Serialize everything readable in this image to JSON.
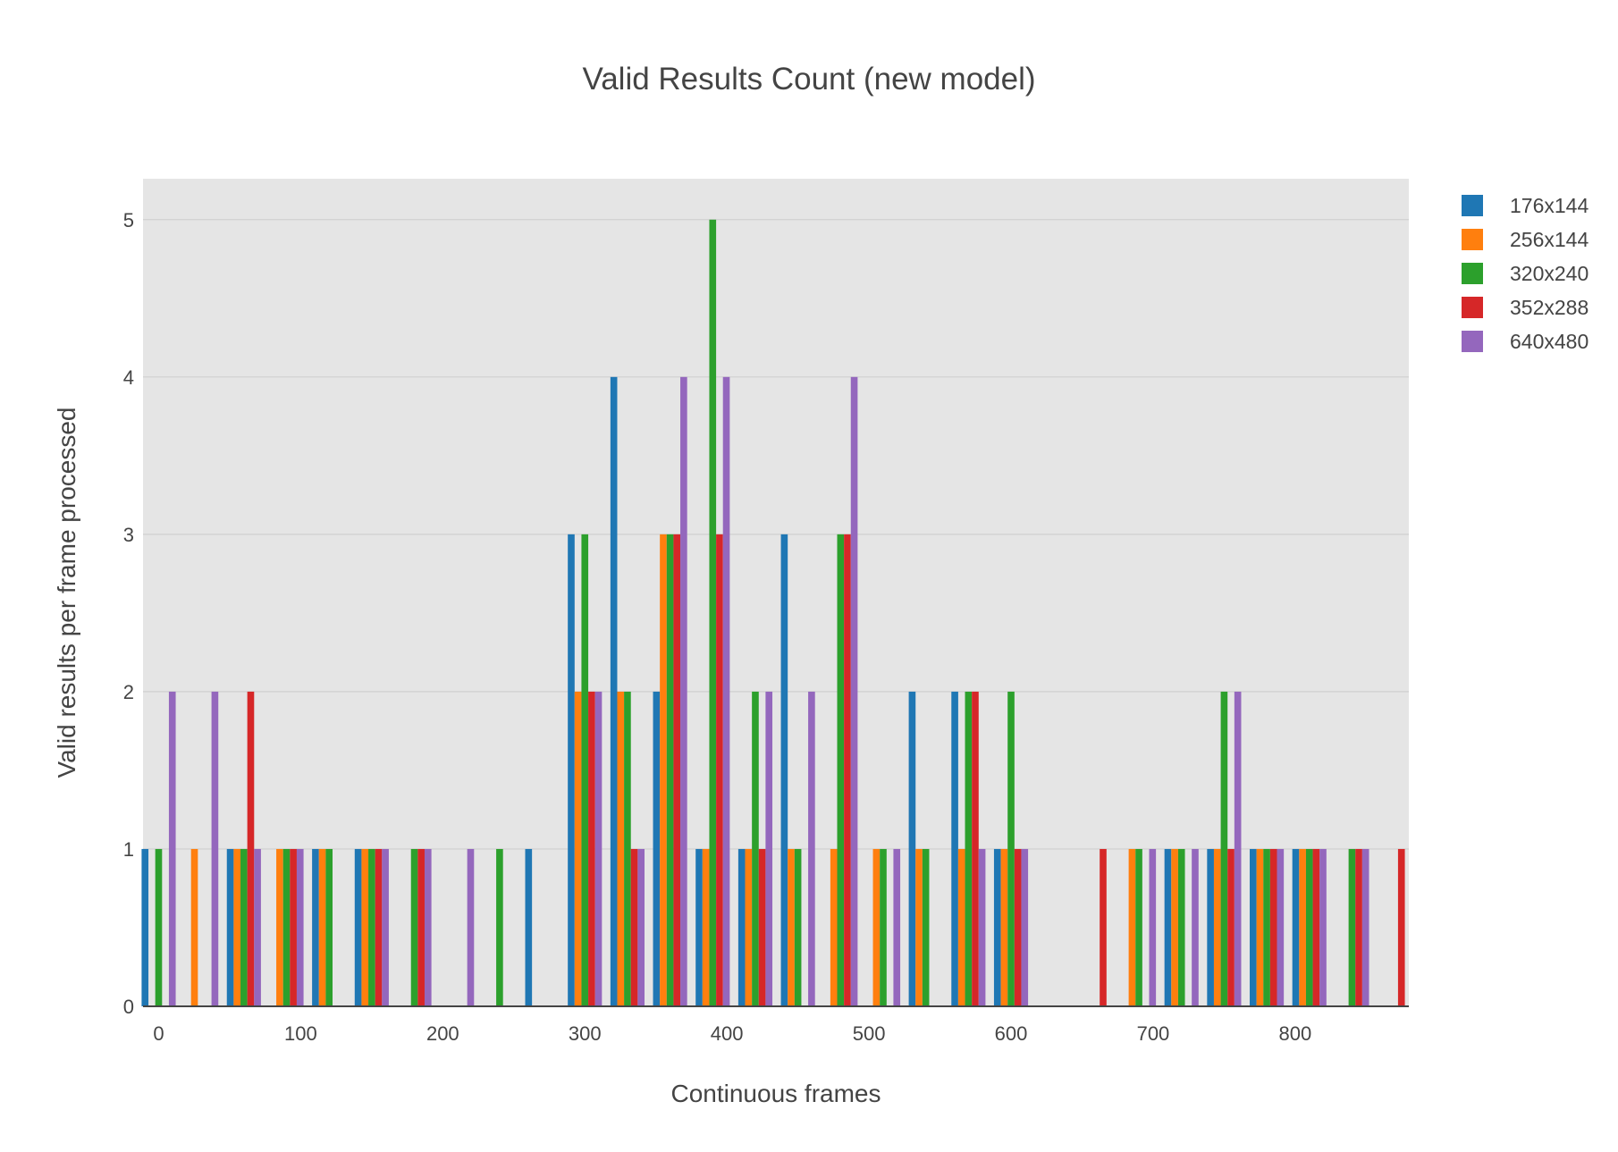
{
  "chart_data": {
    "type": "bar",
    "title": "Valid Results Count (new model)",
    "xlabel": "Continuous frames",
    "ylabel": "Valid results per frame processed",
    "xlim": [
      -11,
      880
    ],
    "ylim": [
      0,
      5.26
    ],
    "x_ticks": [
      0,
      100,
      200,
      300,
      400,
      500,
      600,
      700,
      800
    ],
    "y_ticks": [
      0,
      1,
      2,
      3,
      4,
      5
    ],
    "grid": true,
    "legend_position": "top-right",
    "plot_background": "#e5e5e5",
    "x": [
      0,
      30,
      60,
      90,
      120,
      150,
      180,
      210,
      240,
      270,
      300,
      330,
      360,
      390,
      420,
      450,
      480,
      510,
      540,
      570,
      600,
      630,
      660,
      690,
      720,
      750,
      780,
      810,
      840,
      870
    ],
    "series": [
      {
        "name": "176x144",
        "color": "#1f77b4",
        "values": [
          1,
          0,
          1,
          0,
          1,
          1,
          0,
          0,
          0,
          1,
          3,
          4,
          2,
          1,
          1,
          3,
          0,
          0,
          2,
          2,
          1,
          0,
          0,
          0,
          1,
          1,
          1,
          1,
          0,
          0
        ]
      },
      {
        "name": "256x144",
        "color": "#ff7f0e",
        "values": [
          0,
          1,
          1,
          1,
          1,
          1,
          0,
          0,
          0,
          0,
          2,
          2,
          3,
          1,
          1,
          1,
          1,
          1,
          1,
          1,
          1,
          0,
          0,
          1,
          1,
          1,
          1,
          1,
          0,
          0
        ]
      },
      {
        "name": "320x240",
        "color": "#2ca02c",
        "values": [
          1,
          0,
          1,
          1,
          1,
          1,
          1,
          0,
          1,
          0,
          3,
          2,
          3,
          5,
          2,
          1,
          3,
          1,
          1,
          2,
          2,
          0,
          0,
          1,
          1,
          2,
          1,
          1,
          1,
          0
        ]
      },
      {
        "name": "352x288",
        "color": "#d62728",
        "values": [
          0,
          0,
          2,
          1,
          0,
          1,
          1,
          0,
          0,
          0,
          2,
          1,
          3,
          3,
          1,
          0,
          3,
          0,
          0,
          2,
          1,
          0,
          1,
          0,
          0,
          1,
          1,
          1,
          1,
          1
        ]
      },
      {
        "name": "640x480",
        "color": "#9467bd",
        "values": [
          2,
          2,
          1,
          1,
          0,
          1,
          1,
          1,
          0,
          0,
          2,
          1,
          4,
          4,
          2,
          2,
          4,
          1,
          0,
          1,
          1,
          0,
          0,
          1,
          1,
          2,
          1,
          1,
          1,
          0
        ]
      }
    ]
  }
}
